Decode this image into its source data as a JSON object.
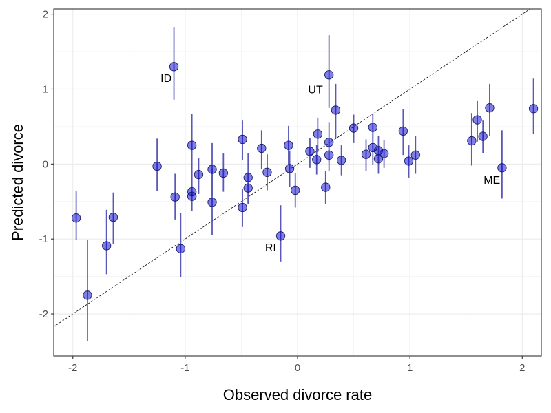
{
  "chart_data": {
    "type": "scatter",
    "title": "",
    "xlabel": "Observed divorce rate",
    "ylabel": "Predicted divorce",
    "xlim": [
      -2.17,
      2.17
    ],
    "ylim": [
      -2.56,
      2.07
    ],
    "x_ticks": [
      -2,
      -1,
      0,
      1,
      2
    ],
    "y_ticks": [
      -2,
      -1,
      0,
      1,
      2
    ],
    "grid": true,
    "reference_line": {
      "slope": 1,
      "intercept": 0,
      "style": "dashed"
    },
    "point_color": "#0000CD",
    "point_fill_opacity": 0.5,
    "errorbar_color": "#5959b8",
    "points": [
      {
        "x": -1.97,
        "y": -0.72,
        "lo": -1.01,
        "hi": -0.36
      },
      {
        "x": -1.87,
        "y": -1.75,
        "lo": -2.36,
        "hi": -1.01
      },
      {
        "x": -1.7,
        "y": -1.09,
        "lo": -1.47,
        "hi": -0.61
      },
      {
        "x": -1.64,
        "y": -0.71,
        "lo": -1.07,
        "hi": -0.38
      },
      {
        "x": -1.25,
        "y": -0.03,
        "lo": -0.36,
        "hi": 0.34
      },
      {
        "x": -1.1,
        "y": 1.3,
        "lo": 0.86,
        "hi": 1.83
      },
      {
        "x": -1.09,
        "y": -0.44,
        "lo": -0.74,
        "hi": -0.13
      },
      {
        "x": -1.04,
        "y": -1.13,
        "lo": -1.51,
        "hi": -0.65
      },
      {
        "x": -0.94,
        "y": 0.25,
        "lo": -0.17,
        "hi": 0.67
      },
      {
        "x": -0.94,
        "y": -0.37,
        "lo": -0.63,
        "hi": -0.13
      },
      {
        "x": -0.94,
        "y": -0.43,
        "lo": -0.62,
        "hi": -0.22
      },
      {
        "x": -0.88,
        "y": -0.14,
        "lo": -0.4,
        "hi": 0.08
      },
      {
        "x": -0.76,
        "y": -0.07,
        "lo": -0.43,
        "hi": 0.28
      },
      {
        "x": -0.76,
        "y": -0.51,
        "lo": -0.95,
        "hi": -0.07
      },
      {
        "x": -0.66,
        "y": -0.12,
        "lo": -0.37,
        "hi": 0.14
      },
      {
        "x": -0.49,
        "y": 0.33,
        "lo": 0.05,
        "hi": 0.58
      },
      {
        "x": -0.49,
        "y": -0.58,
        "lo": -0.84,
        "hi": -0.33
      },
      {
        "x": -0.44,
        "y": -0.18,
        "lo": -0.52,
        "hi": 0.15
      },
      {
        "x": -0.44,
        "y": -0.32,
        "lo": -0.53,
        "hi": -0.11
      },
      {
        "x": -0.32,
        "y": 0.21,
        "lo": -0.07,
        "hi": 0.45
      },
      {
        "x": -0.27,
        "y": -0.11,
        "lo": -0.35,
        "hi": 0.13
      },
      {
        "x": -0.15,
        "y": -0.96,
        "lo": -1.3,
        "hi": -0.55
      },
      {
        "x": -0.08,
        "y": 0.25,
        "lo": -0.01,
        "hi": 0.51
      },
      {
        "x": -0.07,
        "y": -0.06,
        "lo": -0.3,
        "hi": 0.18
      },
      {
        "x": -0.02,
        "y": -0.35,
        "lo": -0.58,
        "hi": -0.12
      },
      {
        "x": 0.11,
        "y": 0.17,
        "lo": -0.05,
        "hi": 0.35
      },
      {
        "x": 0.17,
        "y": 0.06,
        "lo": -0.14,
        "hi": 0.26
      },
      {
        "x": 0.18,
        "y": 0.4,
        "lo": 0.16,
        "hi": 0.62
      },
      {
        "x": 0.25,
        "y": -0.31,
        "lo": -0.53,
        "hi": -0.09
      },
      {
        "x": 0.28,
        "y": 1.19,
        "lo": 0.75,
        "hi": 1.72
      },
      {
        "x": 0.28,
        "y": 0.29,
        "lo": 0.02,
        "hi": 0.56
      },
      {
        "x": 0.28,
        "y": 0.12,
        "lo": -0.09,
        "hi": 0.33
      },
      {
        "x": 0.34,
        "y": 0.72,
        "lo": 0.35,
        "hi": 1.07
      },
      {
        "x": 0.39,
        "y": 0.05,
        "lo": -0.15,
        "hi": 0.25
      },
      {
        "x": 0.5,
        "y": 0.48,
        "lo": 0.28,
        "hi": 0.66
      },
      {
        "x": 0.61,
        "y": 0.13,
        "lo": -0.09,
        "hi": 0.33
      },
      {
        "x": 0.67,
        "y": 0.49,
        "lo": 0.3,
        "hi": 0.67
      },
      {
        "x": 0.67,
        "y": 0.22,
        "lo": -0.01,
        "hi": 0.43
      },
      {
        "x": 0.72,
        "y": 0.07,
        "lo": -0.13,
        "hi": 0.26
      },
      {
        "x": 0.72,
        "y": 0.18,
        "lo": -0.02,
        "hi": 0.38
      },
      {
        "x": 0.77,
        "y": 0.14,
        "lo": -0.05,
        "hi": 0.32
      },
      {
        "x": 0.94,
        "y": 0.44,
        "lo": 0.12,
        "hi": 0.73
      },
      {
        "x": 0.99,
        "y": 0.04,
        "lo": -0.18,
        "hi": 0.25
      },
      {
        "x": 1.05,
        "y": 0.12,
        "lo": -0.13,
        "hi": 0.38
      },
      {
        "x": 1.55,
        "y": 0.31,
        "lo": -0.02,
        "hi": 0.68
      },
      {
        "x": 1.6,
        "y": 0.59,
        "lo": 0.3,
        "hi": 0.84
      },
      {
        "x": 1.65,
        "y": 0.37,
        "lo": 0.15,
        "hi": 0.58
      },
      {
        "x": 1.71,
        "y": 0.75,
        "lo": 0.38,
        "hi": 1.07
      },
      {
        "x": 1.82,
        "y": -0.05,
        "lo": -0.46,
        "hi": 0.45
      },
      {
        "x": 2.1,
        "y": 0.74,
        "lo": 0.4,
        "hi": 1.14
      }
    ],
    "annotations": [
      {
        "label": "ID",
        "x": -1.17,
        "y": 1.15
      },
      {
        "label": "UT",
        "x": 0.16,
        "y": 1.0
      },
      {
        "label": "RI",
        "x": -0.24,
        "y": -1.11
      },
      {
        "label": "ME",
        "x": 1.73,
        "y": -0.21
      }
    ]
  }
}
